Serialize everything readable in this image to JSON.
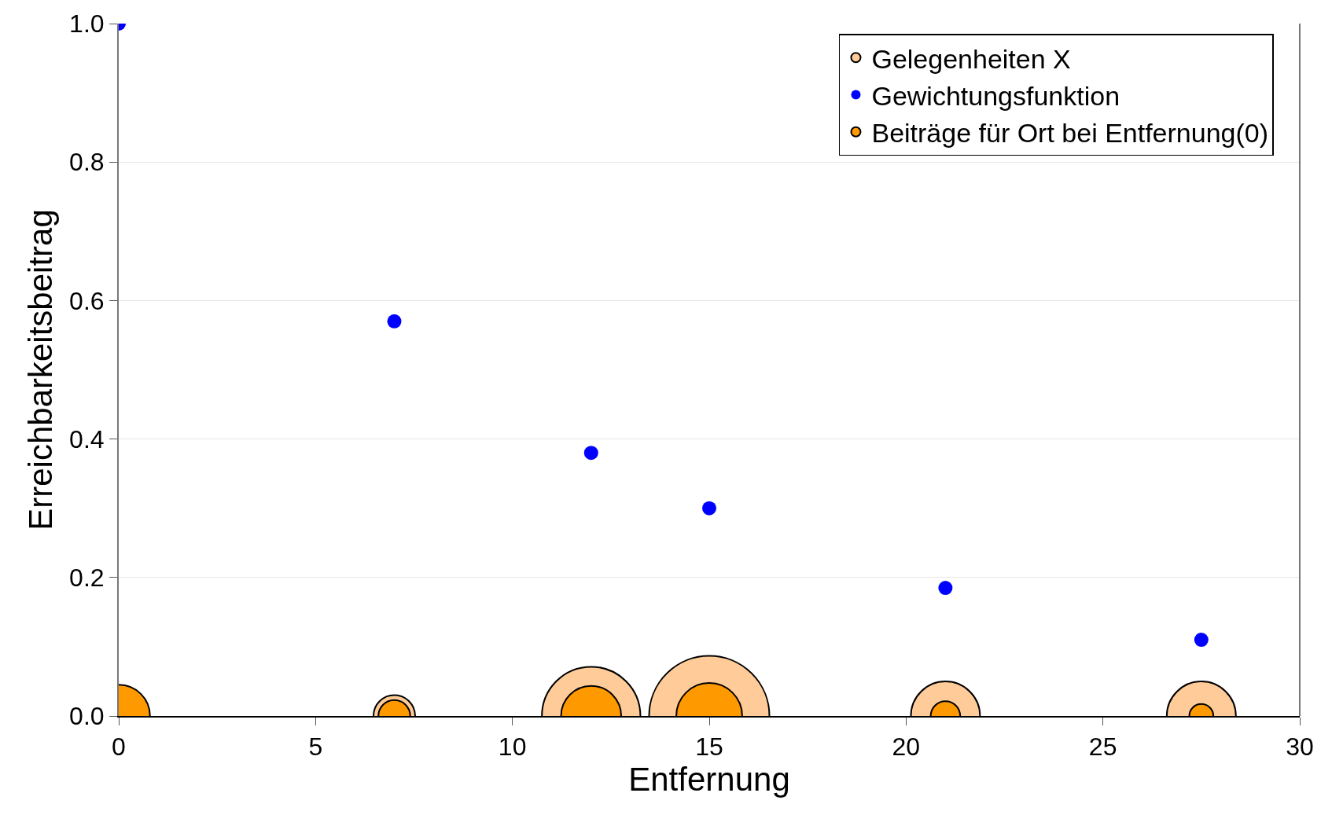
{
  "chart_data": {
    "type": "bubble",
    "xlabel": "Entfernung",
    "ylabel": "Erreichbarkeitsbeitrag",
    "xlim": [
      0,
      30
    ],
    "xticks": [
      0,
      5,
      10,
      15,
      20,
      25,
      30
    ],
    "ylim": [
      0,
      1.0
    ],
    "yticks": [
      {
        "value": 0,
        "label": "0.0"
      },
      0.2,
      0.4,
      0.6,
      0.8,
      {
        "value": 1,
        "label": "1.0"
      }
    ],
    "grid": "y",
    "legend": "top right",
    "series": [
      {
        "name": "Gelegenheiten X",
        "color": "#ffcc99",
        "x": [
          7,
          12,
          15,
          21,
          27.5
        ],
        "values": [
          0,
          0,
          0,
          0,
          0
        ],
        "sizes": [
          0.12,
          0.67,
          1,
          0.33,
          0.33
        ]
      },
      {
        "name": "Gewichtungsfunktion",
        "type": "scatter",
        "color": "#0000ff",
        "marker": "circle",
        "x": [
          0,
          7,
          12,
          15,
          21,
          27.5
        ],
        "values": [
          1.0,
          0.57,
          0.38,
          0.3,
          0.185,
          0.11
        ]
      },
      {
        "name": "Beiträge für Ort bei Entfernung(0)",
        "color": "#ff9900",
        "x": [
          0,
          7,
          12,
          15,
          21,
          27.5
        ],
        "values": [
          0,
          0,
          0,
          0,
          0,
          0
        ],
        "sizes": [
          0.27,
          0.07,
          0.25,
          0.3,
          0.06,
          0.04
        ]
      }
    ]
  }
}
